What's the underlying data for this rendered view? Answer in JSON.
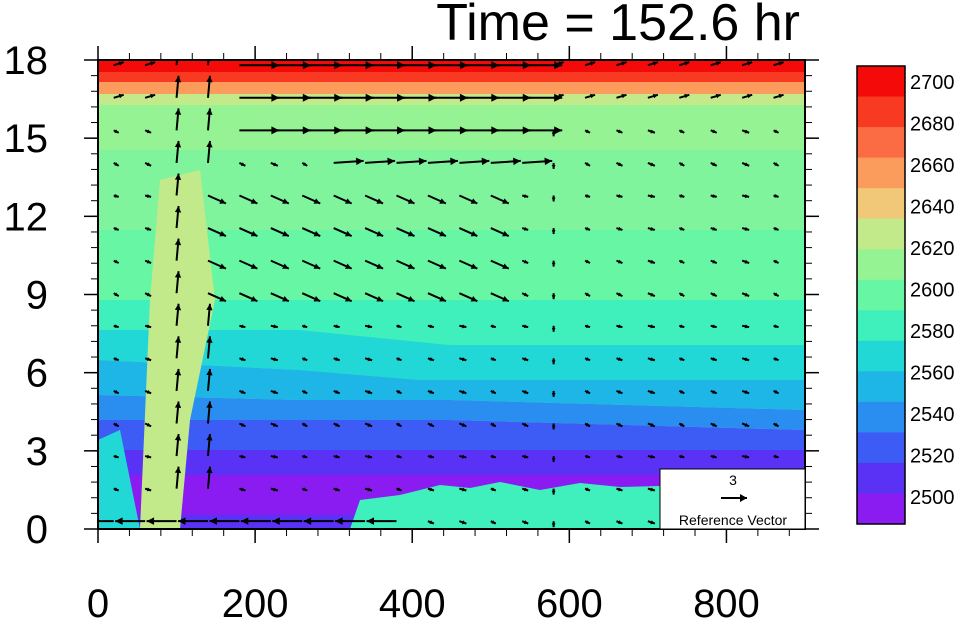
{
  "chart_data": {
    "type": "heatmap",
    "title": "Time = 152.6 hr",
    "xlabel": "",
    "ylabel": "",
    "xlim": [
      0,
      900
    ],
    "ylim": [
      0,
      18
    ],
    "x_ticks": [
      0,
      200,
      400,
      600,
      800
    ],
    "y_ticks": [
      0,
      3,
      6,
      9,
      12,
      15,
      18
    ],
    "grid": false,
    "colorbar": {
      "levels": [
        2500,
        2520,
        2540,
        2560,
        2580,
        2600,
        2620,
        2640,
        2660,
        2680,
        2700
      ],
      "colors": [
        "#8a1cf2",
        "#5a32f6",
        "#3d5cf6",
        "#2a8ef0",
        "#1eb6e6",
        "#22d8d6",
        "#3ff0bc",
        "#67f7a4",
        "#96f394",
        "#c2ea8a",
        "#f0c878",
        "#fb9c5c",
        "#fb6c44",
        "#f83a22",
        "#f50a0a"
      ]
    },
    "reference_vector": {
      "magnitude": "3",
      "label": "Reference Vector"
    },
    "vectors_sample": [
      {
        "x": 270,
        "y": 15.8,
        "u": 3.0,
        "v": 0.0
      },
      {
        "x": 450,
        "y": 14.6,
        "u": 2.5,
        "v": 0.0
      },
      {
        "x": 200,
        "y": 0.2,
        "u": -3.0,
        "v": 0.0
      },
      {
        "x": 110,
        "y": 9.0,
        "u": 0.0,
        "v": 3.5
      }
    ]
  }
}
